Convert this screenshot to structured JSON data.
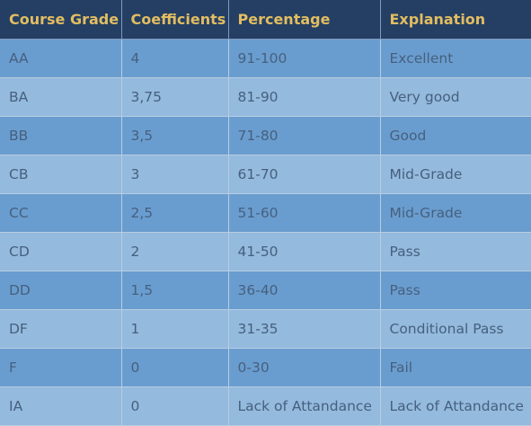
{
  "table": {
    "headers": [
      "Course Grade",
      "Coefficients",
      "Percentage",
      "Explanation"
    ],
    "rows": [
      [
        "AA",
        "4",
        "91-100",
        "Excellent"
      ],
      [
        "BA",
        "3,75",
        "81-90",
        "Very good"
      ],
      [
        "BB",
        "3,5",
        "71-80",
        "Good"
      ],
      [
        "CB",
        "3",
        "61-70",
        "Mid-Grade"
      ],
      [
        "CC",
        "2,5",
        "51-60",
        "Mid-Grade"
      ],
      [
        "CD",
        "2",
        "41-50",
        "Pass"
      ],
      [
        "DD",
        "1,5",
        "36-40",
        "Pass"
      ],
      [
        "DF",
        "1",
        "31-35",
        "Conditional Pass"
      ],
      [
        "F",
        "0",
        "0-30",
        "Fail"
      ],
      [
        "IA",
        "0",
        "Lack of Attandance",
        "Lack of Attandance"
      ]
    ]
  },
  "colors": {
    "header_background": "#243f63",
    "header_text": "#e2bd62",
    "row_dark": "#6a9dcf",
    "row_light": "#94badd",
    "cell_text": "#46607f"
  }
}
